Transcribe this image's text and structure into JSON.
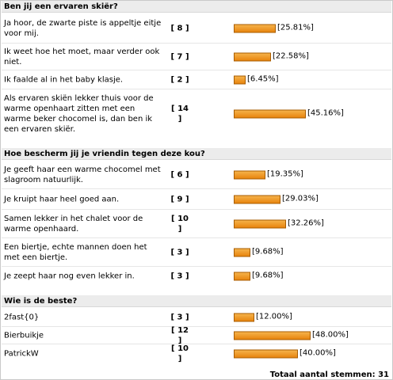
{
  "total_label": "Totaal aantal stemmen: 31",
  "bar_color": "#ee9a22",
  "questions": [
    {
      "title": "Ben jij een ervaren skiër?",
      "options": [
        {
          "label": "Ja hoor, de zwarte piste is appeltje eitje voor mij.",
          "count": "[ 8 ]",
          "percent": 25.81,
          "percent_label": "[25.81%]"
        },
        {
          "label": "Ik weet hoe het moet, maar verder ook niet.",
          "count": "[ 7 ]",
          "percent": 22.58,
          "percent_label": "[22.58%]"
        },
        {
          "label": "Ik faalde al in het baby klasje.",
          "count": "[ 2 ]",
          "percent": 6.45,
          "percent_label": "[6.45%]"
        },
        {
          "label": "Als ervaren skiën lekker thuis voor de warme openhaart zitten met een warme beker chocomel is, dan ben ik een ervaren skiër.",
          "count": "[ 14 ]",
          "percent": 45.16,
          "percent_label": "[45.16%]"
        }
      ]
    },
    {
      "title": "Hoe bescherm jij je vriendin tegen deze kou?",
      "options": [
        {
          "label": "Je geeft haar een warme chocomel met slagroom natuurlijk.",
          "count": "[ 6 ]",
          "percent": 19.35,
          "percent_label": "[19.35%]"
        },
        {
          "label": "Je kruipt haar heel goed aan.",
          "count": "[ 9 ]",
          "percent": 29.03,
          "percent_label": "[29.03%]"
        },
        {
          "label": "Samen lekker in het chalet voor de warme openhaard.",
          "count": "[ 10 ]",
          "percent": 32.26,
          "percent_label": "[32.26%]"
        },
        {
          "label": "Een biertje, echte mannen doen het met een biertje.",
          "count": "[ 3 ]",
          "percent": 9.68,
          "percent_label": "[9.68%]"
        },
        {
          "label": "Je zeept haar nog even lekker in.",
          "count": "[ 3 ]",
          "percent": 9.68,
          "percent_label": "[9.68%]"
        }
      ]
    },
    {
      "title": "Wie is de beste?",
      "options": [
        {
          "label": "2fast{0}",
          "count": "[ 3 ]",
          "percent": 12.0,
          "percent_label": "[12.00%]"
        },
        {
          "label": "Bierbuikje",
          "count": "[ 12 ]",
          "percent": 48.0,
          "percent_label": "[48.00%]"
        },
        {
          "label": "PatrickW",
          "count": "[ 10 ]",
          "percent": 40.0,
          "percent_label": "[40.00%]"
        }
      ]
    }
  ]
}
